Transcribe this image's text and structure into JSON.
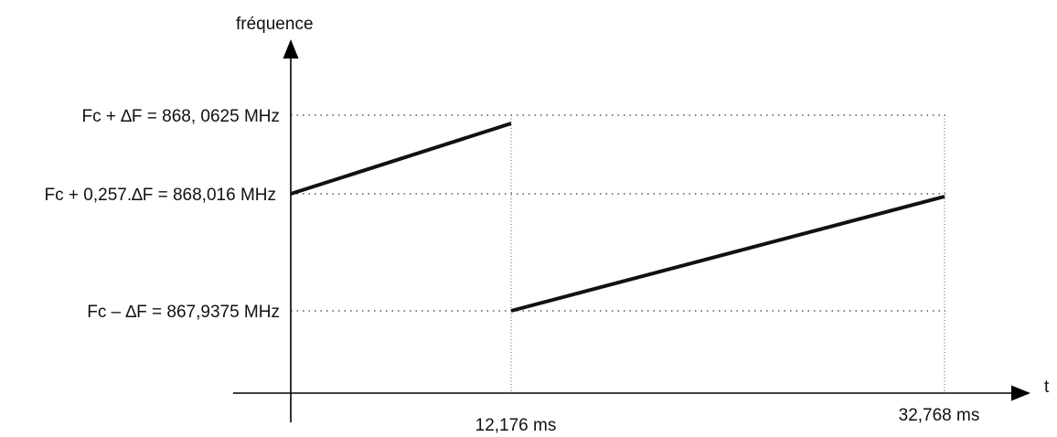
{
  "y_axis_label": "fréquence",
  "x_axis_label": "t",
  "frequency_levels": {
    "high": "Fc + ∆F = 868, 0625 MHz",
    "start": "Fc + 0,257.∆F = 868,016 MHz",
    "low": "Fc – ∆F = 867,9375 MHz"
  },
  "time_marks": {
    "t1": "12,176 ms",
    "t2": "32,768 ms"
  },
  "colors": {
    "line": "#111111",
    "axis": "#000000",
    "guide": "#555555"
  }
}
